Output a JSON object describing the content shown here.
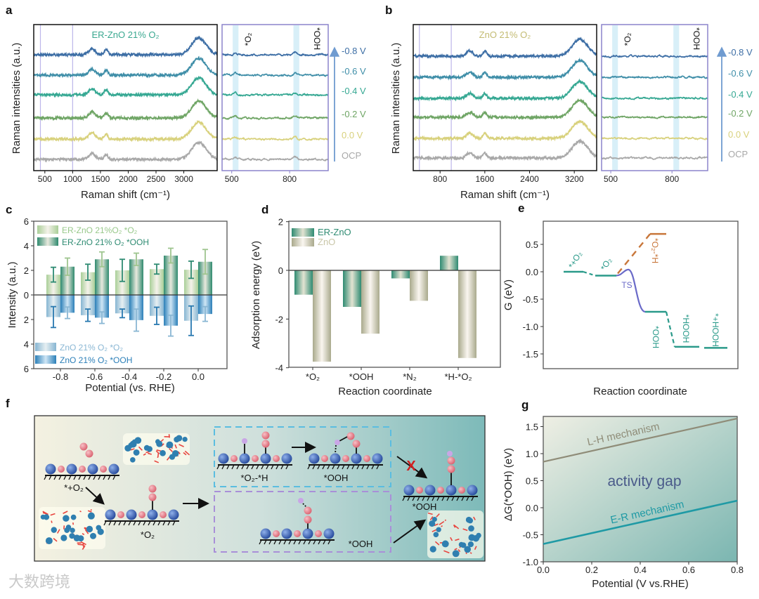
{
  "panel_labels": [
    "a",
    "b",
    "c",
    "d",
    "e",
    "f",
    "g"
  ],
  "watermark": "大数跨境",
  "chart_data": [
    {
      "panel": "a",
      "type": "line",
      "title": "ER-ZnO 21% O₂",
      "title_color": "#3aa890",
      "xlabel": "Raman shift (cm⁻¹)",
      "ylabel": "Raman intensities (a.u.)",
      "main_xlim": [
        300,
        3600
      ],
      "main_xticks": [
        500,
        1000,
        1500,
        2000,
        2500,
        3000
      ],
      "inset_xlim": [
        450,
        1000
      ],
      "inset_xticks": [
        500,
        800
      ],
      "marker_lines_cm": [
        420,
        1000
      ],
      "highlight_bands_cm": [
        [
          505,
          535
        ],
        [
          820,
          850
        ]
      ],
      "annotations": [
        "*O₂",
        "*OOH"
      ],
      "peaks": [
        {
          "center": 1350,
          "height": 0.35,
          "width": 60
        },
        {
          "center": 1600,
          "height": 0.3,
          "width": 35
        },
        {
          "center": 3270,
          "height": 1.0,
          "width": 130
        }
      ],
      "inset_peaks": [
        {
          "center": 520,
          "height": 0.12,
          "width": 8
        },
        {
          "center": 830,
          "height": 0.12,
          "width": 8
        }
      ],
      "series": [
        {
          "name": "-0.8 V",
          "color": "#3d6ea5"
        },
        {
          "name": "-0.6 V",
          "color": "#3f8ea8"
        },
        {
          "name": "-0.4 V",
          "color": "#36a893"
        },
        {
          "name": "-0.2 V",
          "color": "#6fa565"
        },
        {
          "name": "0.0 V",
          "color": "#d8d17c"
        },
        {
          "name": "OCP",
          "color": "#a8a8a8"
        }
      ]
    },
    {
      "panel": "b",
      "type": "line",
      "title": "ZnO 21% O₂",
      "title_color": "#c3bb72",
      "xlabel": "Raman shift (cm⁻¹)",
      "ylabel": "Raman intensities (a.u.)",
      "main_xlim": [
        320,
        3600
      ],
      "main_xticks": [
        800,
        1600,
        2400,
        3200
      ],
      "inset_xlim": [
        455,
        975
      ],
      "inset_xticks": [
        500,
        800
      ],
      "marker_lines_cm": [
        430,
        1000
      ],
      "highlight_bands_cm": [
        [
          507,
          535
        ],
        [
          807,
          835
        ]
      ],
      "annotations": [
        "*O₂",
        "*OOH"
      ],
      "peaks": [
        {
          "center": 1330,
          "height": 0.3,
          "width": 60
        },
        {
          "center": 1600,
          "height": 0.28,
          "width": 35
        },
        {
          "center": 3300,
          "height": 1.0,
          "width": 140
        }
      ],
      "inset_peaks": [],
      "series": [
        {
          "name": "-0.8 V",
          "color": "#3d6ea5"
        },
        {
          "name": "-0.6 V",
          "color": "#3f8ea8"
        },
        {
          "name": "-0.4 V",
          "color": "#36a893"
        },
        {
          "name": "-0.2 V",
          "color": "#6fa565"
        },
        {
          "name": "0.0 V",
          "color": "#d8d17c"
        },
        {
          "name": "OCP",
          "color": "#a8a8a8"
        }
      ]
    },
    {
      "panel": "c",
      "type": "bar",
      "xlabel": "Potential (vs. RHE)",
      "ylabel": "Intensity (a.u.)",
      "categories": [
        "-0.8",
        "-0.6",
        "-0.4",
        "-0.2",
        "0.0"
      ],
      "ylim": [
        -6,
        6
      ],
      "yticks": [
        6,
        4,
        2,
        0,
        -2,
        -4,
        -6
      ],
      "yticklabels": [
        "6",
        "4",
        "2",
        "0",
        "2",
        "4",
        "6"
      ],
      "series": [
        {
          "name": "ER-ZnO 21%O₂ *O₂",
          "direction": "up",
          "values": [
            1.65,
            1.85,
            2.0,
            2.1,
            2.05
          ],
          "errors": [
            0.6,
            0.65,
            0.9,
            0.4,
            0.7
          ],
          "color": "#a9cf98",
          "highlight": "#f5f2ea",
          "error_color": "#2e8b72",
          "legend_color": "#98c88a"
        },
        {
          "name": "ER-ZnO 21% O₂ *OOH",
          "direction": "up",
          "values": [
            2.3,
            2.9,
            2.9,
            3.2,
            2.7
          ],
          "errors": [
            0.7,
            0.6,
            0.5,
            0.6,
            1.0
          ],
          "color": "#2f8a6e",
          "highlight": "#e9e9de",
          "error_color": "#9fc58f",
          "legend_color": "#2e8b72"
        },
        {
          "name": "ZnO 21% O₂ *O₂",
          "direction": "down",
          "values": [
            1.8,
            1.65,
            1.5,
            1.7,
            2.1
          ],
          "errors": [
            0.85,
            0.5,
            0.35,
            0.7,
            1.2
          ],
          "color": "#86b5d2",
          "highlight": "#e6eff2",
          "error_color": "#2979b0",
          "legend_color": "#8ab7d4"
        },
        {
          "name": "ZnO 21% O₂ *OOH",
          "direction": "down",
          "values": [
            1.45,
            1.85,
            2.05,
            2.5,
            1.55
          ],
          "errors": [
            0.47,
            0.47,
            0.9,
            0.85,
            0.6
          ],
          "color": "#2b7fb8",
          "highlight": "#cfe6f5",
          "error_color": "#8ab7d4",
          "legend_color": "#2b7fb8"
        }
      ]
    },
    {
      "panel": "d",
      "type": "bar",
      "xlabel": "Reaction coordinate",
      "ylabel": "Adsorption energy (eV)",
      "categories": [
        "*O₂",
        "*OOH",
        "*N₂",
        "*H-*O₂"
      ],
      "ylim": [
        -4,
        2
      ],
      "yticks": [
        2,
        0,
        -2,
        -4
      ],
      "yticklabels": [
        "2",
        "0",
        "-2",
        "-4"
      ],
      "series": [
        {
          "name": "ER-ZnO",
          "values": [
            -1.0,
            -1.5,
            -0.33,
            0.6
          ],
          "color": "#2e8b72",
          "highlight": "#e3e3d2",
          "legend_color": "#2e8b72"
        },
        {
          "name": "ZnO",
          "values": [
            -3.75,
            -2.6,
            -1.25,
            -3.6
          ],
          "color": "#a9a98c",
          "highlight": "#faf6f0",
          "legend_color": "#c9c6a8"
        }
      ]
    },
    {
      "panel": "e",
      "type": "line",
      "xlabel": "Reaction coordinate",
      "ylabel": "G (eV)",
      "ylim": [
        -1.77,
        0.92
      ],
      "yticks": [
        0.5,
        0.0,
        -0.5,
        -1.0,
        -1.5
      ],
      "yticklabels": [
        "0.5",
        "0.0",
        "-0.5",
        "-1.0",
        "-1.5"
      ],
      "colors": {
        "er_path": "#2a9a8a",
        "lh_path": "#c8763a",
        "ts": "#6a6ac8"
      },
      "levels": [
        {
          "label": "*+O₂",
          "G": 0.0
        },
        {
          "label": "*O₂",
          "G": -0.07
        },
        {
          "label": "TS",
          "G": 0.04
        },
        {
          "label": "*OOH",
          "G": -0.73
        },
        {
          "label": "*HOOH",
          "G": -1.37
        },
        {
          "label": "*+HOOH",
          "G": -1.39
        }
      ],
      "alternative_level": {
        "label": "*O₂-*H",
        "G": 0.69
      }
    },
    {
      "panel": "g",
      "type": "line",
      "xlabel": "Potential (V vs.RHE)",
      "ylabel": "ΔG(*OOH) (eV)",
      "xlim": [
        0,
        0.8
      ],
      "ylim": [
        -1.0,
        1.68
      ],
      "xticks": [
        0.0,
        0.2,
        0.4,
        0.6,
        0.8
      ],
      "xticklabels": [
        "0.0",
        "0.2",
        "0.4",
        "0.6",
        "0.8"
      ],
      "yticks": [
        1.5,
        1.0,
        0.5,
        0.0,
        -0.5,
        -1.0
      ],
      "yticklabels": [
        "1.5",
        "1.0",
        "0.5",
        "0.0",
        "-0.5",
        "-1.0"
      ],
      "annotation": "activity gap",
      "series": [
        {
          "name": "L-H mechanism",
          "x": [
            0.0,
            0.8
          ],
          "y": [
            0.85,
            1.65
          ],
          "color": "#8f8c78"
        },
        {
          "name": "E-R mechanism",
          "x": [
            0.0,
            0.8
          ],
          "y": [
            -0.67,
            0.13
          ],
          "color": "#1f9aa5"
        }
      ]
    }
  ],
  "schematic": {
    "labels": [
      "*+O₂",
      "*O₂",
      "*O₂-*H",
      "*OOH",
      "*OOH",
      "*OOH"
    ],
    "blocked_mark": "X",
    "colors": {
      "zn": "#2f56a8",
      "o": "#e4808a",
      "h": "#c9a6e6",
      "blue_box": "#5bbde0",
      "purple_box": "#a98fd8"
    }
  }
}
